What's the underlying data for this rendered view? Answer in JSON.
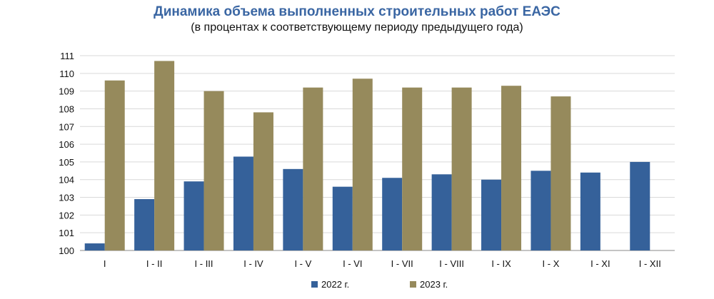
{
  "chart_data": {
    "type": "bar",
    "title": "Динамика объема выполненных строительных работ ЕАЭС",
    "subtitle": "(в процентах к соответствующему периоду предыдущего года)",
    "categories": [
      "I",
      "I - II",
      "I - III",
      "I - IV",
      "I - V",
      "I - VI",
      "I - VII",
      "I - VIII",
      "I - IX",
      "I - X",
      "I - XI",
      "I - XII"
    ],
    "series": [
      {
        "name": "2022 г.",
        "color": "#35619a",
        "values": [
          100.4,
          102.9,
          103.9,
          105.3,
          104.6,
          103.6,
          104.1,
          104.3,
          104.0,
          104.5,
          104.4,
          105.0
        ]
      },
      {
        "name": "2023 г.",
        "color": "#968a5c",
        "values": [
          109.6,
          110.7,
          109.0,
          107.8,
          109.2,
          109.7,
          109.2,
          109.2,
          109.3,
          108.7,
          null,
          null
        ]
      }
    ],
    "ylim": [
      100,
      111
    ],
    "yticks": [
      100,
      101,
      102,
      103,
      104,
      105,
      106,
      107,
      108,
      109,
      110,
      111
    ],
    "grid": true,
    "legend": "bottom"
  }
}
